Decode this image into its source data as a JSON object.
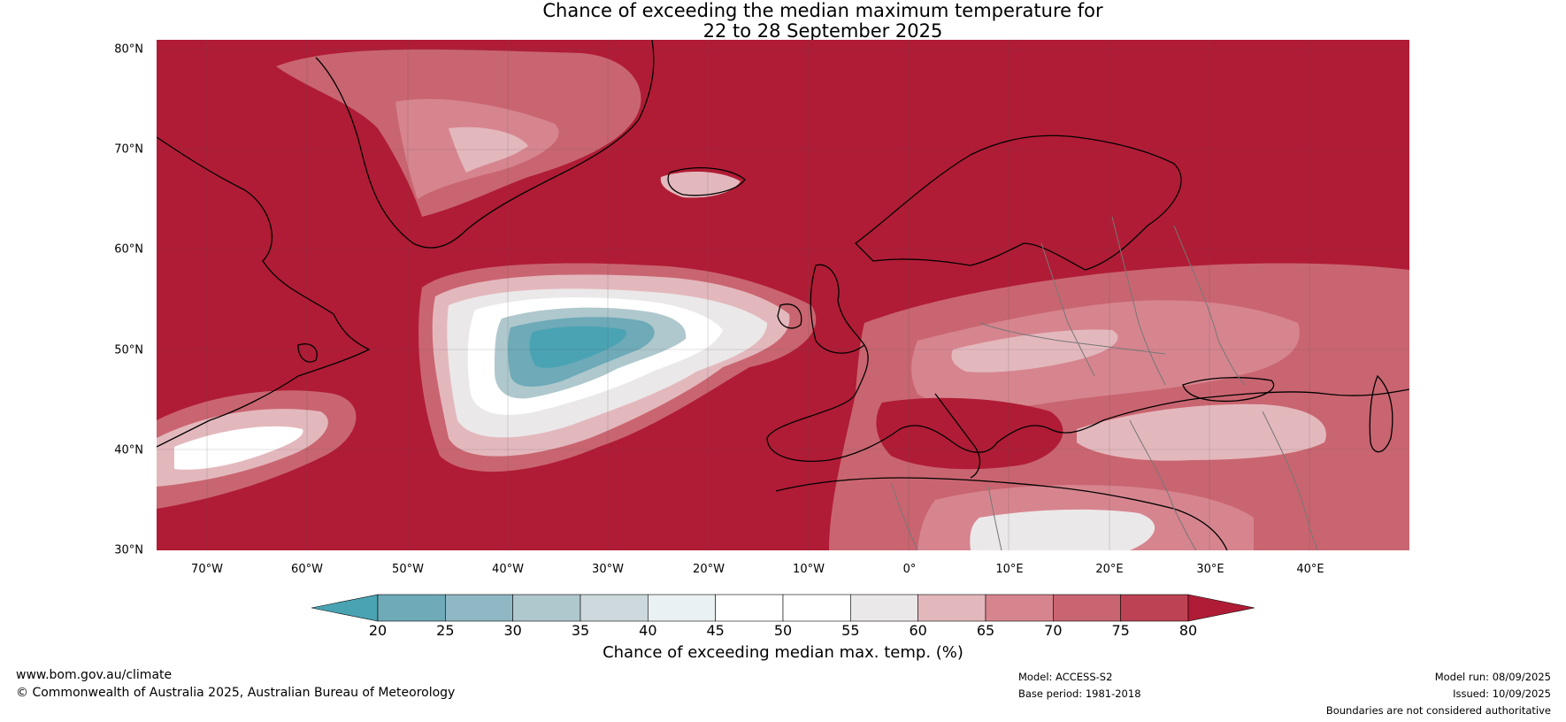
{
  "title": {
    "line1": "Chance of exceeding the median maximum temperature for",
    "line2": "22 to 28 September 2025"
  },
  "map": {
    "lat_labels": [
      "80°N",
      "70°N",
      "60°N",
      "50°N",
      "40°N",
      "30°N"
    ],
    "lon_labels": [
      "70°W",
      "60°W",
      "50°W",
      "40°W",
      "30°W",
      "20°W",
      "10°W",
      "0°",
      "10°E",
      "20°E",
      "30°E",
      "40°E"
    ]
  },
  "colorbar": {
    "ticks": [
      "20",
      "25",
      "30",
      "35",
      "40",
      "45",
      "50",
      "55",
      "60",
      "65",
      "70",
      "75",
      "80"
    ],
    "colors": [
      "#4aa3b3",
      "#6eaab8",
      "#8fb7c4",
      "#afc8cd",
      "#cdd9dc",
      "#e9f1f3",
      "#ffffff",
      "#ffffff",
      "#ebe8e9",
      "#e3b8bd",
      "#d6858f",
      "#c96570",
      "#bd4253"
    ],
    "extend_low_color": "#4aa3b3",
    "extend_high_color": "#b01c35",
    "label": "Chance of exceeding median max. temp. (%)"
  },
  "footer": {
    "website": "www.bom.gov.au/climate",
    "copyright": "© Commonwealth of Australia 2025, Australian Bureau of Meteorology",
    "model": "Model: ACCESS-S2",
    "base_period": "Base period: 1981-2018",
    "model_run": "Model run: 08/09/2025",
    "issued": "Issued: 10/09/2025",
    "disclaimer": "Boundaries are not considered authoritative"
  },
  "colors": {
    "high": "#b01c35",
    "mid_high": "#c44a5a",
    "light_pink": "#e0aab2",
    "neutral": "#ececec",
    "cool": "#4aa3b3"
  }
}
